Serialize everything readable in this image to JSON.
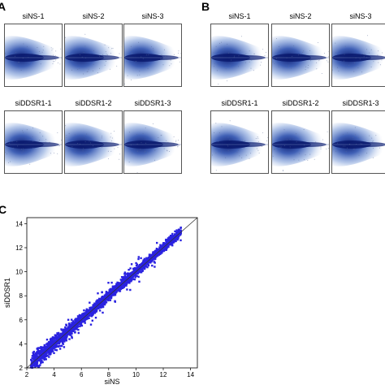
{
  "panels": {
    "A": {
      "letter": "A",
      "plots": [
        {
          "title": "siNS-1"
        },
        {
          "title": "siNS-2"
        },
        {
          "title": "siNS-3"
        },
        {
          "title": "siDDSR1-1"
        },
        {
          "title": "siDDSR1-2"
        },
        {
          "title": "siDDSR1-3"
        }
      ]
    },
    "B": {
      "letter": "B",
      "plots": [
        {
          "title": "siNS-1"
        },
        {
          "title": "siNS-2"
        },
        {
          "title": "siNS-3"
        },
        {
          "title": "siDDSR1-1"
        },
        {
          "title": "siDDSR1-2"
        },
        {
          "title": "siDDSR1-3"
        }
      ]
    },
    "C": {
      "letter": "C"
    }
  },
  "colors": {
    "density_dark": "#0a1a6e",
    "density_light": "#c8d6f0",
    "scatter": "#2a22e0",
    "diagonal": "#333333"
  },
  "chart_data": [
    {
      "type": "scatter",
      "title": "",
      "xlabel": "siNS",
      "ylabel": "siDDSR1",
      "xlim": [
        2,
        14.5
      ],
      "ylim": [
        2,
        14.5
      ],
      "xticks": [
        2,
        4,
        6,
        8,
        10,
        12,
        14
      ],
      "yticks": [
        2,
        4,
        6,
        8,
        10,
        12,
        14
      ],
      "reference_line": "y = x",
      "grid": false,
      "points_description_range": {
        "x": [
          2.3,
          13.3
        ],
        "y": [
          2.2,
          13.6
        ]
      }
    }
  ]
}
